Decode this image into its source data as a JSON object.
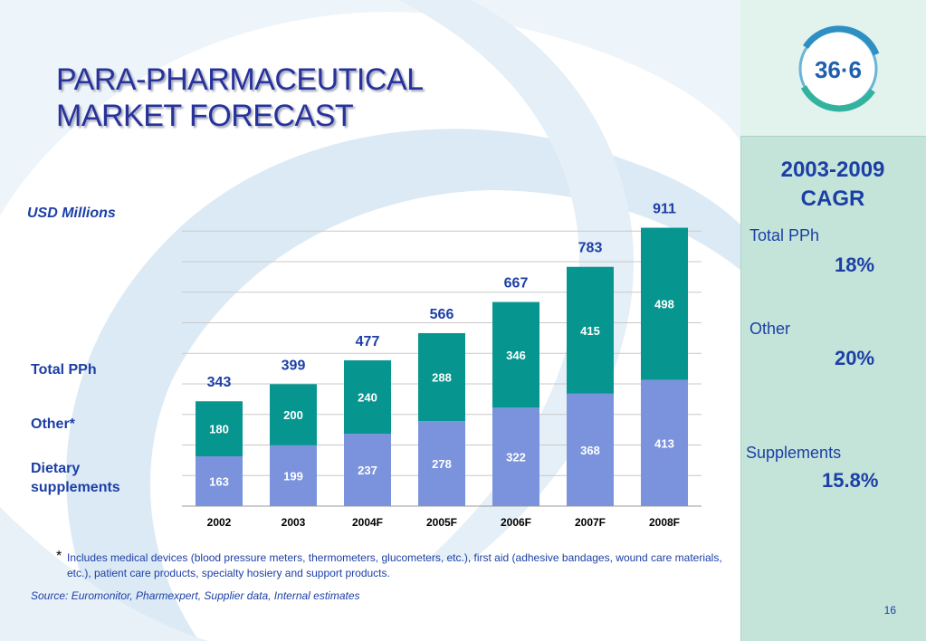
{
  "slide": {
    "title_line1": "PARA-PHARMACEUTICAL",
    "title_line2": "MARKET FORECAST",
    "logo_text": "36·6",
    "units_label": "USD Millions",
    "legend": {
      "total": "Total PPh",
      "other": "Other*",
      "dietary_line1": "Dietary",
      "dietary_line2": "supplements"
    },
    "cagr": {
      "title_line1": "2003-2009",
      "title_line2": "CAGR",
      "items": [
        {
          "label": "Total PPh",
          "value": "18%"
        },
        {
          "label": "Other",
          "value": "20%"
        },
        {
          "label": "Supplements",
          "value": "15.8%"
        }
      ]
    },
    "footnote_star": "*",
    "footnote": "Includes medical devices (blood pressure meters, thermometers, glucometers, etc.), first aid (adhesive bandages, wound care materials, etc.), patient care products, specialty hosiery and support products.",
    "source": "Source: Euromonitor, Pharmexpert, Supplier data, Internal estimates",
    "page_number": "16"
  },
  "colors": {
    "title": "#27329a",
    "text": "#1c3fa6",
    "dietary": "#7b93dd",
    "other": "#06968f",
    "panel": "#c4e4d9"
  },
  "chart_data": {
    "type": "bar",
    "stacked": true,
    "categories": [
      "2002",
      "2003",
      "2004F",
      "2005F",
      "2006F",
      "2007F",
      "2008F"
    ],
    "series": [
      {
        "name": "Dietary supplements",
        "values": [
          163,
          199,
          237,
          278,
          322,
          368,
          413
        ]
      },
      {
        "name": "Other*",
        "values": [
          180,
          200,
          240,
          288,
          346,
          415,
          498
        ]
      }
    ],
    "totals": [
      343,
      399,
      477,
      566,
      667,
      783,
      911
    ],
    "ylabel": "USD Millions",
    "ylim": [
      0,
      1000
    ],
    "grid": true
  }
}
